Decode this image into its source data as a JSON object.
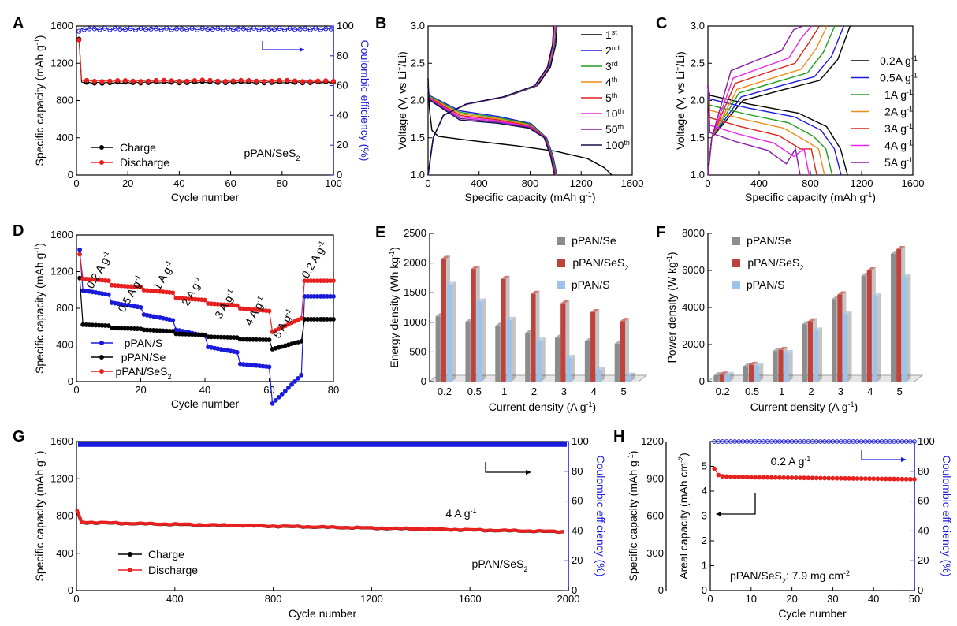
{
  "panel_labels": [
    "A",
    "B",
    "C",
    "D",
    "E",
    "F",
    "G",
    "H"
  ],
  "chart_data": [
    {
      "panel": "A",
      "type": "line",
      "xlabel": "Cycle number",
      "ylabel": "Specific capacity (mAh g-1)",
      "ylabel_right": "Coulombic efficiency (%)",
      "xlim": [
        0,
        100
      ],
      "ylim": [
        0,
        1600
      ],
      "ylim_right": [
        0,
        100
      ],
      "xticks": [
        "0",
        "20",
        "40",
        "60",
        "80",
        "100"
      ],
      "yticks": [
        "0",
        "400",
        "800",
        "1200",
        "1600"
      ],
      "yticks_right": [
        "0",
        "20",
        "40",
        "60",
        "80",
        "100"
      ],
      "annotation": "pPAN/SeS2",
      "series": [
        {
          "name": "Charge",
          "color": "#000000",
          "x": [
            1,
            2,
            3,
            5,
            10,
            20,
            30,
            40,
            50,
            60,
            70,
            80,
            90,
            100
          ],
          "y": [
            1460,
            1000,
            995,
            990,
            990,
            992,
            995,
            995,
            997,
            995,
            995,
            995,
            995,
            995
          ]
        },
        {
          "name": "Discharge",
          "color": "#e8201e",
          "x": [
            1,
            2,
            3,
            5,
            10,
            20,
            30,
            40,
            50,
            60,
            70,
            80,
            90,
            100
          ],
          "y": [
            1450,
            1020,
            1015,
            1012,
            1010,
            1010,
            1012,
            1012,
            1015,
            1012,
            1012,
            1012,
            1010,
            1005
          ]
        },
        {
          "name": "Coulombic efficiency",
          "color": "#1a1adc",
          "axis": "right",
          "x": [
            1,
            2,
            5,
            10,
            20,
            30,
            40,
            50,
            60,
            70,
            80,
            90,
            100
          ],
          "y": [
            96,
            98,
            98,
            98,
            98,
            98,
            98,
            98,
            98,
            98,
            98,
            98,
            98
          ]
        }
      ]
    },
    {
      "panel": "B",
      "type": "line",
      "xlabel": "Specific capacity (mAh g-1)",
      "ylabel": "Voltage (V, vs Li+/Li)",
      "xlim": [
        0,
        1600
      ],
      "ylim": [
        1.0,
        3.0
      ],
      "xticks": [
        "0",
        "400",
        "800",
        "1200",
        "1600"
      ],
      "yticks": [
        "1.0",
        "1.5",
        "2.0",
        "2.5",
        "3.0"
      ],
      "legend": [
        "1st",
        "2nd",
        "3rd",
        "4th",
        "5th",
        "10th",
        "50th",
        "100th"
      ],
      "series": [
        {
          "name": "1st",
          "color": "#000000",
          "discharge_end": 1440,
          "charge_end": 1010
        },
        {
          "name": "2nd",
          "color": "#1a1adc",
          "discharge_end": 1010,
          "charge_end": 1000
        },
        {
          "name": "3rd",
          "color": "#1e9e1e",
          "discharge_end": 1005,
          "charge_end": 995
        },
        {
          "name": "4th",
          "color": "#f08a18",
          "discharge_end": 1000,
          "charge_end": 995
        },
        {
          "name": "5th",
          "color": "#d9261c",
          "discharge_end": 1000,
          "charge_end": 990
        },
        {
          "name": "10th",
          "color": "#ee22ee",
          "discharge_end": 995,
          "charge_end": 990
        },
        {
          "name": "50th",
          "color": "#8a18a8",
          "discharge_end": 995,
          "charge_end": 985
        },
        {
          "name": "100th",
          "color": "#101050",
          "discharge_end": 990,
          "charge_end": 985
        }
      ]
    },
    {
      "panel": "C",
      "type": "line",
      "xlabel": "Specific capacity (mAh g-1)",
      "ylabel": "Voltage (V, vs Li+/Li)",
      "xlim": [
        0,
        1600
      ],
      "ylim": [
        1.0,
        3.0
      ],
      "xticks": [
        "0",
        "400",
        "800",
        "1200",
        "1600"
      ],
      "yticks": [
        "1.0",
        "1.5",
        "2.0",
        "2.5",
        "3.0"
      ],
      "legend": [
        "0.2A g-1",
        "0.5A g-1",
        "1A g-1",
        "2A g-1",
        "3A g-1",
        "4A g-1",
        "5A g-1"
      ],
      "series": [
        {
          "name": "0.2A g-1",
          "color": "#000000",
          "capacity": 1090,
          "charge_mid": 2.15,
          "discharge_mid": 1.95
        },
        {
          "name": "0.5A g-1",
          "color": "#1a1adc",
          "capacity": 1040,
          "charge_mid": 2.2,
          "discharge_mid": 1.9
        },
        {
          "name": "1A g-1",
          "color": "#1e9e1e",
          "capacity": 970,
          "charge_mid": 2.25,
          "discharge_mid": 1.82
        },
        {
          "name": "2A g-1",
          "color": "#f08a18",
          "capacity": 910,
          "charge_mid": 2.3,
          "discharge_mid": 1.75
        },
        {
          "name": "3A g-1",
          "color": "#d9261c",
          "capacity": 850,
          "charge_mid": 2.38,
          "discharge_mid": 1.65
        },
        {
          "name": "4A g-1",
          "color": "#ee22ee",
          "capacity": 790,
          "charge_mid": 2.45,
          "discharge_mid": 1.55
        },
        {
          "name": "5A g-1",
          "color": "#8a18a8",
          "capacity": 720,
          "charge_mid": 2.55,
          "discharge_mid": 1.45
        }
      ]
    },
    {
      "panel": "D",
      "type": "scatter",
      "xlabel": "Cycle number",
      "ylabel": "Specific capacity (mAh g-1)",
      "xlim": [
        0,
        80
      ],
      "ylim": [
        0,
        1600
      ],
      "xticks": [
        "0",
        "20",
        "40",
        "60",
        "80"
      ],
      "yticks": [
        "0",
        "400",
        "800",
        "1200",
        "1600"
      ],
      "rate_labels": [
        "0.2 A g-1",
        "0.5 A g-1",
        "1 A g-1",
        "2 A g-1",
        "3 A g-1",
        "4 A g-1",
        "5 A g-1",
        "0.2 A g-1"
      ],
      "series": [
        {
          "name": "pPAN/S",
          "color": "#1a1adc",
          "levels": [
            1440,
            950,
            810,
            670,
            500,
            320,
            160,
            70,
            930
          ]
        },
        {
          "name": "pPAN/Se",
          "color": "#000000",
          "levels": [
            1130,
            610,
            575,
            550,
            510,
            480,
            455,
            440,
            680
          ]
        },
        {
          "name": "pPAN/SeS2",
          "color": "#e8201e",
          "levels": [
            1390,
            1100,
            1030,
            970,
            890,
            830,
            770,
            690,
            1100
          ]
        }
      ]
    },
    {
      "panel": "E",
      "type": "bar",
      "xlabel": "Current density (A g-1)",
      "ylabel": "Energy density (Wh kg-1)",
      "ylim": [
        0,
        2500
      ],
      "yticks": [
        "0",
        "500",
        "1000",
        "1500",
        "2000",
        "2500"
      ],
      "categories": [
        "0.2",
        "0.5",
        "1",
        "2",
        "3",
        "4",
        "5"
      ],
      "series": [
        {
          "name": "pPAN/Se",
          "color": "#8c8c8c",
          "values": [
            1100,
            1010,
            940,
            820,
            740,
            680,
            640
          ]
        },
        {
          "name": "pPAN/SeS2",
          "color": "#c0423c",
          "values": [
            2070,
            1900,
            1730,
            1480,
            1320,
            1170,
            1020
          ]
        },
        {
          "name": "pPAN/S",
          "color": "#9ec3ea",
          "values": [
            1630,
            1350,
            1040,
            690,
            400,
            200,
            100
          ]
        }
      ]
    },
    {
      "panel": "F",
      "type": "bar",
      "xlabel": "Current density (A g-1)",
      "ylabel": "Power density (W kg-1)",
      "ylim": [
        0,
        8000
      ],
      "yticks": [
        "0",
        "2000",
        "4000",
        "6000",
        "8000"
      ],
      "categories": [
        "0.2",
        "0.5",
        "1",
        "2",
        "3",
        "4",
        "5"
      ],
      "series": [
        {
          "name": "pPAN/Se",
          "color": "#8c8c8c",
          "values": [
            340,
            830,
            1650,
            3100,
            4450,
            5700,
            6900
          ]
        },
        {
          "name": "pPAN/SeS2",
          "color": "#c0423c",
          "values": [
            370,
            900,
            1700,
            3250,
            4700,
            6000,
            7150
          ]
        },
        {
          "name": "pPAN/S",
          "color": "#9ec3ea",
          "values": [
            350,
            830,
            1530,
            2750,
            3650,
            4600,
            5650
          ]
        }
      ]
    },
    {
      "panel": "G",
      "type": "line",
      "xlabel": "Cycle number",
      "ylabel": "Specific capacity (mAh g-1)",
      "ylabel_right": "Coulombic efficiency (%)",
      "xlim": [
        0,
        2000
      ],
      "ylim": [
        0,
        1600
      ],
      "ylim_right": [
        0,
        100
      ],
      "xticks": [
        "0",
        "400",
        "800",
        "1200",
        "1600",
        "2000"
      ],
      "yticks": [
        "0",
        "400",
        "800",
        "1200",
        "1600"
      ],
      "yticks_right": [
        "0",
        "20",
        "40",
        "60",
        "80",
        "100"
      ],
      "annotation": "pPAN/SeS2",
      "rate_label": "4 A g-1",
      "series": [
        {
          "name": "Charge",
          "color": "#000000",
          "x": [
            1,
            20,
            200,
            400,
            800,
            1200,
            1600,
            2000
          ],
          "y": [
            860,
            730,
            720,
            710,
            690,
            670,
            650,
            630
          ]
        },
        {
          "name": "Discharge",
          "color": "#e8201e",
          "x": [
            1,
            20,
            200,
            400,
            800,
            1200,
            1600,
            2000
          ],
          "y": [
            870,
            735,
            722,
            712,
            692,
            672,
            652,
            632
          ]
        },
        {
          "name": "Coulombic efficiency",
          "color": "#1a1adc",
          "axis": "right",
          "x": [
            1,
            2000
          ],
          "y": [
            98,
            98
          ]
        }
      ]
    },
    {
      "panel": "H",
      "type": "line",
      "xlabel": "Cycle number",
      "ylabel": "Specific capacity (mAh g-1)",
      "ylabel_inner": "Areal capacity (mAh cm-2)",
      "ylabel_right": "Coulombic efficiency (%)",
      "xlim": [
        0,
        50
      ],
      "ylim": [
        0,
        1200
      ],
      "ylim_right": [
        0,
        100
      ],
      "xticks": [
        "0",
        "10",
        "20",
        "30",
        "40",
        "50"
      ],
      "yticks": [
        "0",
        "300",
        "600",
        "900",
        "1200"
      ],
      "yticks_inner": [
        "0",
        "1",
        "2",
        "3",
        "4",
        "5"
      ],
      "yticks_right": [
        "0",
        "20",
        "40",
        "60",
        "80",
        "100"
      ],
      "rate_label": "0.2 A g-1",
      "annotation": "pPAN/SeS2: 7.9 mg cm-2",
      "series": [
        {
          "name": "Areal capacity",
          "color": "#e8201e",
          "x": [
            1,
            2,
            3,
            5,
            10,
            20,
            30,
            40,
            50
          ],
          "y": [
            4.9,
            4.65,
            4.6,
            4.58,
            4.56,
            4.54,
            4.52,
            4.5,
            4.48
          ]
        },
        {
          "name": "Coulombic efficiency",
          "color": "#1a1adc",
          "axis": "right",
          "x": [
            1,
            50
          ],
          "y": [
            100,
            100
          ]
        }
      ]
    }
  ]
}
